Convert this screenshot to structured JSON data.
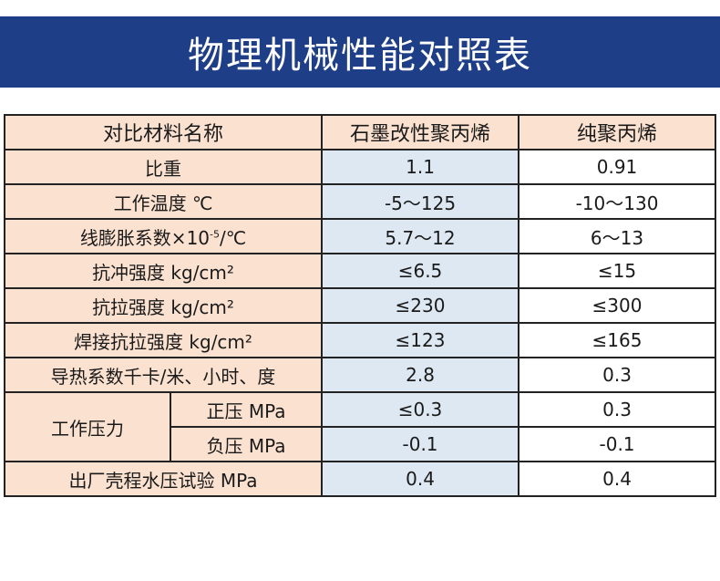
{
  "title": "物理机械性能对照表",
  "header": {
    "col1": "对比材料名称",
    "col2": "石墨改性聚丙烯",
    "col3": "纯聚丙烯"
  },
  "rows": [
    {
      "label": "比重",
      "graphite": "1.1",
      "pure": "0.91"
    },
    {
      "label": "工作温度 ℃",
      "graphite": "-5～125",
      "pure": "-10～130"
    },
    {
      "label_prefix": "线膨胀系数×10",
      "label_sup": "-5",
      "label_suffix": "/℃",
      "graphite": "5.7～12",
      "pure": "6～13"
    },
    {
      "label": "抗冲强度 kg/cm²",
      "graphite": "≤6.5",
      "pure": "≤15"
    },
    {
      "label": "抗拉强度 kg/cm²",
      "graphite": "≤230",
      "pure": "≤300"
    },
    {
      "label": "焊接抗拉强度 kg/cm²",
      "graphite": "≤123",
      "pure": "≤165"
    },
    {
      "label": "导热系数千卡/米、小时、度",
      "graphite": "2.8",
      "pure": "0.3"
    }
  ],
  "pressure": {
    "group_label": "工作压力",
    "positive": {
      "label": "正压 MPa",
      "graphite": "≤0.3",
      "pure": "0.3"
    },
    "negative": {
      "label": "负压 MPa",
      "graphite": "-0.1",
      "pure": "-0.1"
    }
  },
  "factory_test": {
    "label": "出厂壳程水压试验 MPa",
    "graphite": "0.4",
    "pure": "0.4"
  }
}
